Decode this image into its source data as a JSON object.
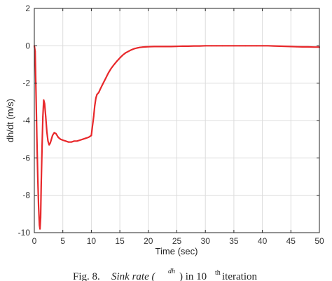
{
  "chart_data": {
    "type": "line",
    "title": "",
    "xlabel": "Time (sec)",
    "ylabel": "dh/dt (m/s)",
    "xlim": [
      0,
      50
    ],
    "ylim": [
      -10,
      2
    ],
    "xticks": [
      0,
      5,
      10,
      15,
      20,
      25,
      30,
      35,
      40,
      45,
      50
    ],
    "yticks": [
      2,
      0,
      -2,
      -4,
      -6,
      -8,
      -10
    ],
    "grid": true,
    "line_color": "#e8282b",
    "series": [
      {
        "x": [
          0,
          0.15,
          0.3,
          0.45,
          0.6,
          0.75,
          0.9,
          1.0,
          1.1,
          1.2,
          1.35,
          1.5,
          1.65,
          1.8,
          2.0,
          2.2,
          2.4,
          2.6,
          2.8,
          3.0,
          3.2,
          3.5,
          3.8,
          4.2,
          4.6,
          5.0,
          5.5,
          6.0,
          6.5,
          7.0,
          7.5,
          8.0,
          8.5,
          9.0,
          9.5,
          10.0,
          10.2,
          10.4,
          10.6,
          10.8,
          11.0,
          11.3,
          11.6,
          12.0,
          12.5,
          13.0,
          13.5,
          14.0,
          14.5,
          15.0,
          15.5,
          16.0,
          16.5,
          17.0,
          17.5,
          18.0,
          18.5,
          19.0,
          19.5,
          20.0,
          21.0,
          22.0,
          23.0,
          24.0,
          25.0,
          26.0,
          27.0,
          28.0,
          29.0,
          30.0,
          31.0,
          32.0,
          33.0,
          34.0,
          35.0,
          36.0,
          37.0,
          38.0,
          39.0,
          40.0,
          41.0,
          42.0,
          43.0,
          44.0,
          45.0,
          46.0,
          47.0,
          48.0,
          49.0,
          50.0
        ],
        "values": [
          0,
          -0.3,
          -2.5,
          -5.0,
          -7.0,
          -8.6,
          -9.6,
          -9.8,
          -9.2,
          -7.5,
          -5.5,
          -3.8,
          -2.9,
          -3.1,
          -3.8,
          -4.6,
          -5.1,
          -5.3,
          -5.2,
          -5.0,
          -4.8,
          -4.65,
          -4.7,
          -4.9,
          -5.0,
          -5.05,
          -5.1,
          -5.15,
          -5.15,
          -5.1,
          -5.1,
          -5.05,
          -5.0,
          -4.95,
          -4.9,
          -4.8,
          -4.3,
          -3.8,
          -3.2,
          -2.8,
          -2.6,
          -2.5,
          -2.3,
          -2.05,
          -1.75,
          -1.45,
          -1.2,
          -1.0,
          -0.82,
          -0.65,
          -0.5,
          -0.38,
          -0.3,
          -0.22,
          -0.16,
          -0.12,
          -0.09,
          -0.07,
          -0.06,
          -0.05,
          -0.04,
          -0.04,
          -0.04,
          -0.04,
          -0.03,
          -0.02,
          -0.02,
          -0.01,
          -0.01,
          0.0,
          0.0,
          0.0,
          0.0,
          0.0,
          0.0,
          0.0,
          0.0,
          0.0,
          0.0,
          0.0,
          0.0,
          -0.01,
          -0.02,
          -0.03,
          -0.04,
          -0.05,
          -0.06,
          -0.06,
          -0.07,
          -0.07
        ]
      }
    ]
  },
  "caption": {
    "prefix": "Fig. 8.",
    "text_a": "Sink rate (",
    "fraction_numerator": "dh",
    "text_b": ") in 10",
    "superscript": "th",
    "text_c": " iteration"
  }
}
